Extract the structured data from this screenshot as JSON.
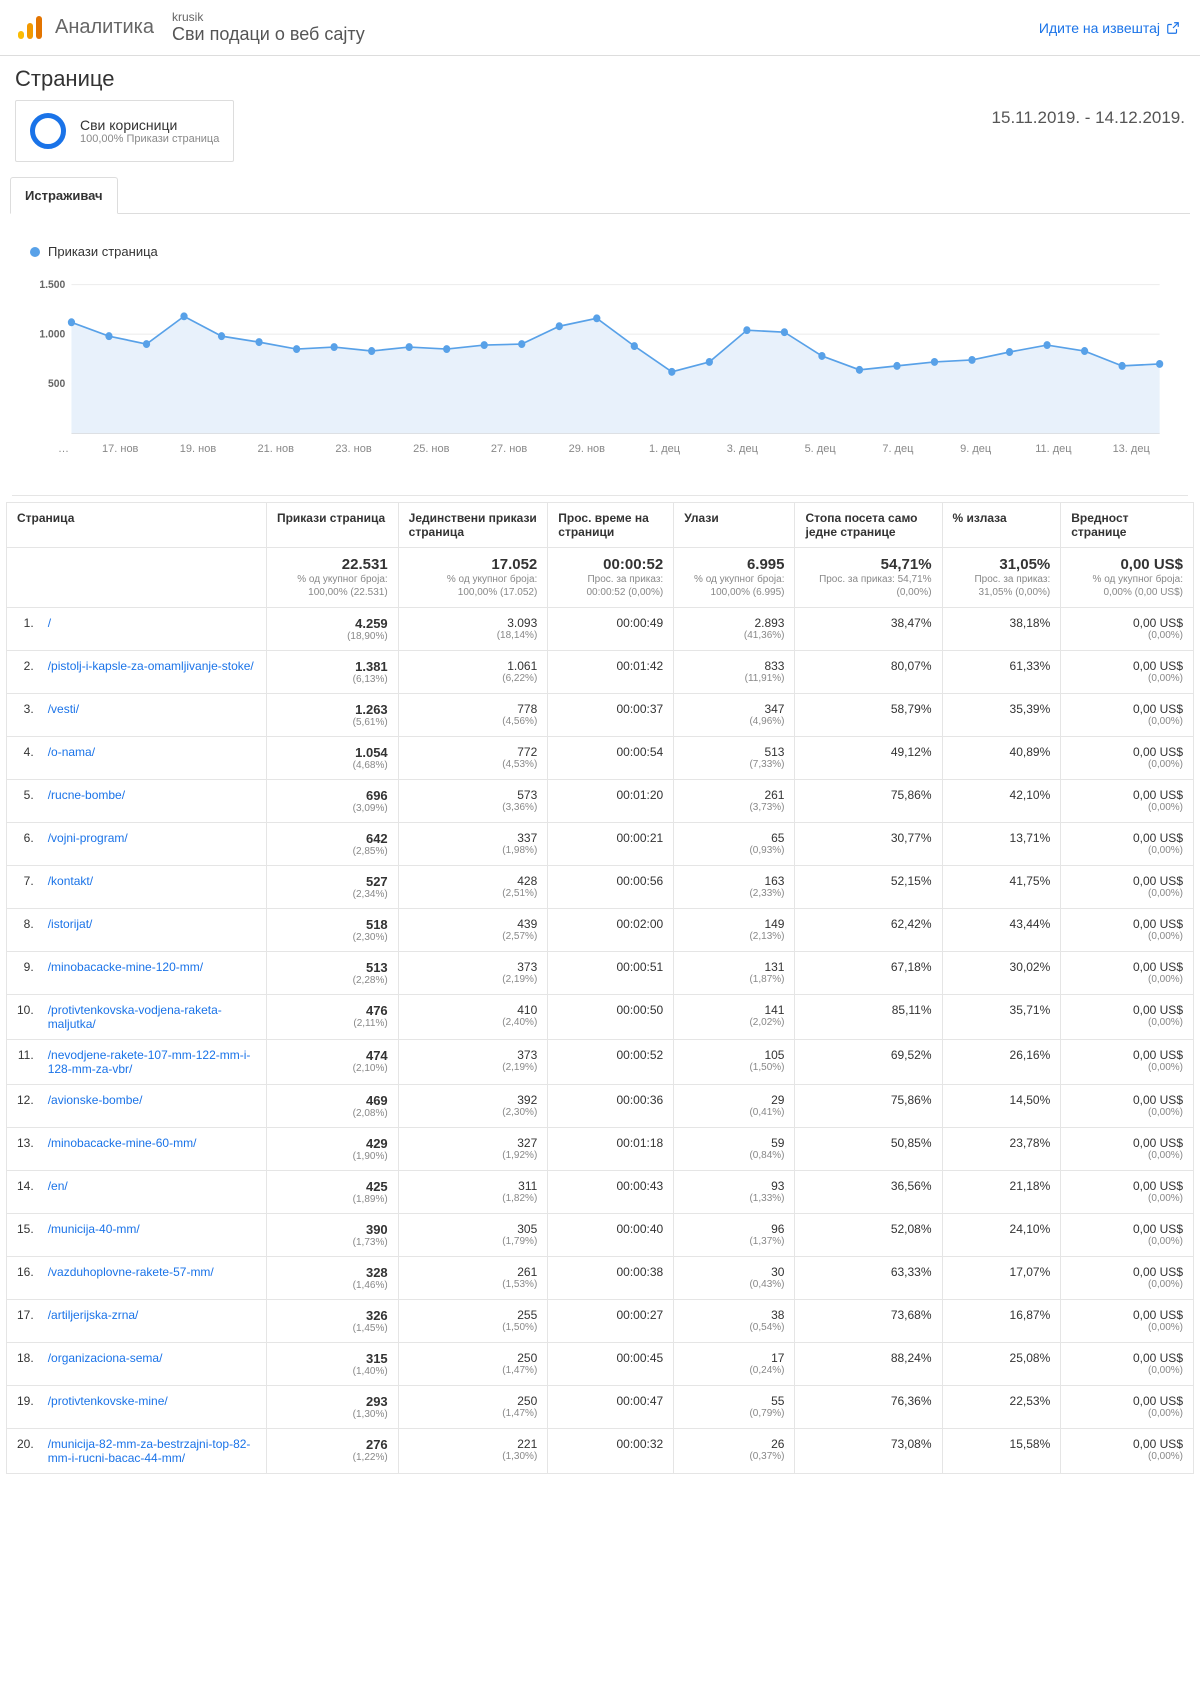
{
  "header": {
    "brand": "Аналитика",
    "account": "krusik",
    "view": "Сви подаци о веб сајту",
    "report_link": "Идите на извештај",
    "logo_colors": {
      "small": "#fbbc04",
      "mid": "#f29900",
      "big": "#e37400"
    }
  },
  "section": {
    "title": "Странице",
    "segment_title": "Сви корисници",
    "segment_sub": "100,00% Прикази страница",
    "date_range": "15.11.2019. - 14.12.2019.",
    "tab": "Истраживач",
    "circle_color": "#1a73e8"
  },
  "chart": {
    "type": "line",
    "legend": "Прикази страница",
    "color": "#58a1e8",
    "fill": "#e8f1fb",
    "grid_color": "#eeeeee",
    "yticks": [
      "1.500",
      "1.000",
      "500"
    ],
    "ylim": [
      0,
      1600
    ],
    "marker_radius": 3.5,
    "line_width": 1.5,
    "xlabels": [
      "…",
      "17. нов",
      "19. нов",
      "21. нов",
      "23. нов",
      "25. нов",
      "27. нов",
      "29. нов",
      "1. дец",
      "3. дец",
      "5. дец",
      "7. дец",
      "9. дец",
      "11. дец",
      "13. дец"
    ],
    "values": [
      1120,
      980,
      900,
      1180,
      980,
      920,
      850,
      870,
      830,
      870,
      850,
      890,
      900,
      1080,
      1160,
      880,
      620,
      720,
      1040,
      1020,
      780,
      640,
      680,
      720,
      740,
      820,
      890,
      830,
      680,
      700
    ]
  },
  "table": {
    "columns": [
      "Страница",
      "Прикази страница",
      "Јединствени прикази страница",
      "Прос. време на страници",
      "Улази",
      "Стопа посета само једне странице",
      "% излаза",
      "Вредност странице"
    ],
    "summary": {
      "pageviews": {
        "v": "22.531",
        "sub": "% од укупног броја: 100,00% (22.531)"
      },
      "unique": {
        "v": "17.052",
        "sub": "% од укупног броја: 100,00% (17.052)"
      },
      "avg_time": {
        "v": "00:00:52",
        "sub": "Прос. за приказ: 00:00:52 (0,00%)"
      },
      "entrances": {
        "v": "6.995",
        "sub": "% од укупног броја: 100,00% (6.995)"
      },
      "bounce": {
        "v": "54,71%",
        "sub": "Прос. за приказ: 54,71% (0,00%)"
      },
      "exit": {
        "v": "31,05%",
        "sub": "Прос. за приказ: 31,05% (0,00%)"
      },
      "value": {
        "v": "0,00 US$",
        "sub": "% од укупног броја: 0,00% (0,00 US$)"
      }
    },
    "rows": [
      {
        "n": "1.",
        "page": "/",
        "pv": "4.259",
        "pvp": "(18,90%)",
        "upv": "3.093",
        "upvp": "(18,14%)",
        "t": "00:00:49",
        "ent": "2.893",
        "entp": "(41,36%)",
        "b": "38,47%",
        "ex": "38,18%",
        "val": "0,00 US$",
        "valp": "(0,00%)"
      },
      {
        "n": "2.",
        "page": "/pistolj-i-kapsle-za-omamljivanje-stoke/",
        "pv": "1.381",
        "pvp": "(6,13%)",
        "upv": "1.061",
        "upvp": "(6,22%)",
        "t": "00:01:42",
        "ent": "833",
        "entp": "(11,91%)",
        "b": "80,07%",
        "ex": "61,33%",
        "val": "0,00 US$",
        "valp": "(0,00%)"
      },
      {
        "n": "3.",
        "page": "/vesti/",
        "pv": "1.263",
        "pvp": "(5,61%)",
        "upv": "778",
        "upvp": "(4,56%)",
        "t": "00:00:37",
        "ent": "347",
        "entp": "(4,96%)",
        "b": "58,79%",
        "ex": "35,39%",
        "val": "0,00 US$",
        "valp": "(0,00%)"
      },
      {
        "n": "4.",
        "page": "/o-nama/",
        "pv": "1.054",
        "pvp": "(4,68%)",
        "upv": "772",
        "upvp": "(4,53%)",
        "t": "00:00:54",
        "ent": "513",
        "entp": "(7,33%)",
        "b": "49,12%",
        "ex": "40,89%",
        "val": "0,00 US$",
        "valp": "(0,00%)"
      },
      {
        "n": "5.",
        "page": "/rucne-bombe/",
        "pv": "696",
        "pvp": "(3,09%)",
        "upv": "573",
        "upvp": "(3,36%)",
        "t": "00:01:20",
        "ent": "261",
        "entp": "(3,73%)",
        "b": "75,86%",
        "ex": "42,10%",
        "val": "0,00 US$",
        "valp": "(0,00%)"
      },
      {
        "n": "6.",
        "page": "/vojni-program/",
        "pv": "642",
        "pvp": "(2,85%)",
        "upv": "337",
        "upvp": "(1,98%)",
        "t": "00:00:21",
        "ent": "65",
        "entp": "(0,93%)",
        "b": "30,77%",
        "ex": "13,71%",
        "val": "0,00 US$",
        "valp": "(0,00%)"
      },
      {
        "n": "7.",
        "page": "/kontakt/",
        "pv": "527",
        "pvp": "(2,34%)",
        "upv": "428",
        "upvp": "(2,51%)",
        "t": "00:00:56",
        "ent": "163",
        "entp": "(2,33%)",
        "b": "52,15%",
        "ex": "41,75%",
        "val": "0,00 US$",
        "valp": "(0,00%)"
      },
      {
        "n": "8.",
        "page": "/istorijat/",
        "pv": "518",
        "pvp": "(2,30%)",
        "upv": "439",
        "upvp": "(2,57%)",
        "t": "00:02:00",
        "ent": "149",
        "entp": "(2,13%)",
        "b": "62,42%",
        "ex": "43,44%",
        "val": "0,00 US$",
        "valp": "(0,00%)"
      },
      {
        "n": "9.",
        "page": "/minobacacke-mine-120-mm/",
        "pv": "513",
        "pvp": "(2,28%)",
        "upv": "373",
        "upvp": "(2,19%)",
        "t": "00:00:51",
        "ent": "131",
        "entp": "(1,87%)",
        "b": "67,18%",
        "ex": "30,02%",
        "val": "0,00 US$",
        "valp": "(0,00%)"
      },
      {
        "n": "10.",
        "page": "/protivtenkovska-vodjena-raketa-maljutka/",
        "pv": "476",
        "pvp": "(2,11%)",
        "upv": "410",
        "upvp": "(2,40%)",
        "t": "00:00:50",
        "ent": "141",
        "entp": "(2,02%)",
        "b": "85,11%",
        "ex": "35,71%",
        "val": "0,00 US$",
        "valp": "(0,00%)"
      },
      {
        "n": "11.",
        "page": "/nevodjene-rakete-107-mm-122-mm-i-128-mm-za-vbr/",
        "pv": "474",
        "pvp": "(2,10%)",
        "upv": "373",
        "upvp": "(2,19%)",
        "t": "00:00:52",
        "ent": "105",
        "entp": "(1,50%)",
        "b": "69,52%",
        "ex": "26,16%",
        "val": "0,00 US$",
        "valp": "(0,00%)"
      },
      {
        "n": "12.",
        "page": "/avionske-bombe/",
        "pv": "469",
        "pvp": "(2,08%)",
        "upv": "392",
        "upvp": "(2,30%)",
        "t": "00:00:36",
        "ent": "29",
        "entp": "(0,41%)",
        "b": "75,86%",
        "ex": "14,50%",
        "val": "0,00 US$",
        "valp": "(0,00%)"
      },
      {
        "n": "13.",
        "page": "/minobacacke-mine-60-mm/",
        "pv": "429",
        "pvp": "(1,90%)",
        "upv": "327",
        "upvp": "(1,92%)",
        "t": "00:01:18",
        "ent": "59",
        "entp": "(0,84%)",
        "b": "50,85%",
        "ex": "23,78%",
        "val": "0,00 US$",
        "valp": "(0,00%)"
      },
      {
        "n": "14.",
        "page": "/en/",
        "pv": "425",
        "pvp": "(1,89%)",
        "upv": "311",
        "upvp": "(1,82%)",
        "t": "00:00:43",
        "ent": "93",
        "entp": "(1,33%)",
        "b": "36,56%",
        "ex": "21,18%",
        "val": "0,00 US$",
        "valp": "(0,00%)"
      },
      {
        "n": "15.",
        "page": "/municija-40-mm/",
        "pv": "390",
        "pvp": "(1,73%)",
        "upv": "305",
        "upvp": "(1,79%)",
        "t": "00:00:40",
        "ent": "96",
        "entp": "(1,37%)",
        "b": "52,08%",
        "ex": "24,10%",
        "val": "0,00 US$",
        "valp": "(0,00%)"
      },
      {
        "n": "16.",
        "page": "/vazduhoplovne-rakete-57-mm/",
        "pv": "328",
        "pvp": "(1,46%)",
        "upv": "261",
        "upvp": "(1,53%)",
        "t": "00:00:38",
        "ent": "30",
        "entp": "(0,43%)",
        "b": "63,33%",
        "ex": "17,07%",
        "val": "0,00 US$",
        "valp": "(0,00%)"
      },
      {
        "n": "17.",
        "page": "/artiljerijska-zrna/",
        "pv": "326",
        "pvp": "(1,45%)",
        "upv": "255",
        "upvp": "(1,50%)",
        "t": "00:00:27",
        "ent": "38",
        "entp": "(0,54%)",
        "b": "73,68%",
        "ex": "16,87%",
        "val": "0,00 US$",
        "valp": "(0,00%)"
      },
      {
        "n": "18.",
        "page": "/organizaciona-sema/",
        "pv": "315",
        "pvp": "(1,40%)",
        "upv": "250",
        "upvp": "(1,47%)",
        "t": "00:00:45",
        "ent": "17",
        "entp": "(0,24%)",
        "b": "88,24%",
        "ex": "25,08%",
        "val": "0,00 US$",
        "valp": "(0,00%)"
      },
      {
        "n": "19.",
        "page": "/protivtenkovske-mine/",
        "pv": "293",
        "pvp": "(1,30%)",
        "upv": "250",
        "upvp": "(1,47%)",
        "t": "00:00:47",
        "ent": "55",
        "entp": "(0,79%)",
        "b": "76,36%",
        "ex": "22,53%",
        "val": "0,00 US$",
        "valp": "(0,00%)"
      },
      {
        "n": "20.",
        "page": "/municija-82-mm-za-bestrzajni-top-82-mm-i-rucni-bacac-44-mm/",
        "pv": "276",
        "pvp": "(1,22%)",
        "upv": "221",
        "upvp": "(1,30%)",
        "t": "00:00:32",
        "ent": "26",
        "entp": "(0,37%)",
        "b": "73,08%",
        "ex": "15,58%",
        "val": "0,00 US$",
        "valp": "(0,00%)"
      }
    ]
  }
}
